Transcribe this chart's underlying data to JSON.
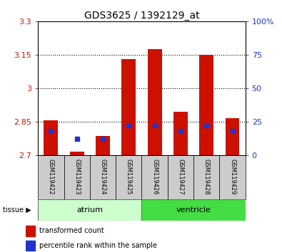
{
  "title": "GDS3625 / 1392129_at",
  "samples": [
    "GSM119422",
    "GSM119423",
    "GSM119424",
    "GSM119425",
    "GSM119426",
    "GSM119427",
    "GSM119428",
    "GSM119429"
  ],
  "groups": [
    "atrium",
    "atrium",
    "atrium",
    "atrium",
    "ventricle",
    "ventricle",
    "ventricle",
    "ventricle"
  ],
  "bar_baseline": 2.7,
  "transformed_count": [
    2.855,
    2.715,
    2.785,
    3.13,
    3.175,
    2.895,
    3.15,
    2.865
  ],
  "percentile_rank_pct": [
    18,
    12,
    12,
    22,
    22,
    18,
    22,
    18
  ],
  "ylim_left": [
    2.7,
    3.3
  ],
  "ylim_right": [
    0,
    100
  ],
  "yticks_left": [
    2.7,
    2.85,
    3.0,
    3.15,
    3.3
  ],
  "yticks_right": [
    0,
    25,
    50,
    75,
    100
  ],
  "ytick_labels_left": [
    "2.7",
    "2.85",
    "3",
    "3.15",
    "3.3"
  ],
  "ytick_labels_right": [
    "0",
    "25",
    "50",
    "75",
    "100%"
  ],
  "bar_color": "#cc1100",
  "marker_color": "#2233cc",
  "atrium_color_light": "#ccffcc",
  "atrium_color": "#aaffaa",
  "ventricle_color": "#44dd44",
  "sample_box_color": "#cccccc",
  "legend_items": [
    "transformed count",
    "percentile rank within the sample"
  ],
  "legend_colors": [
    "#cc1100",
    "#2233cc"
  ],
  "bar_width": 0.55,
  "title_fontsize": 10,
  "tick_fontsize": 8,
  "sample_fontsize": 6,
  "tissue_fontsize": 8,
  "legend_fontsize": 7
}
